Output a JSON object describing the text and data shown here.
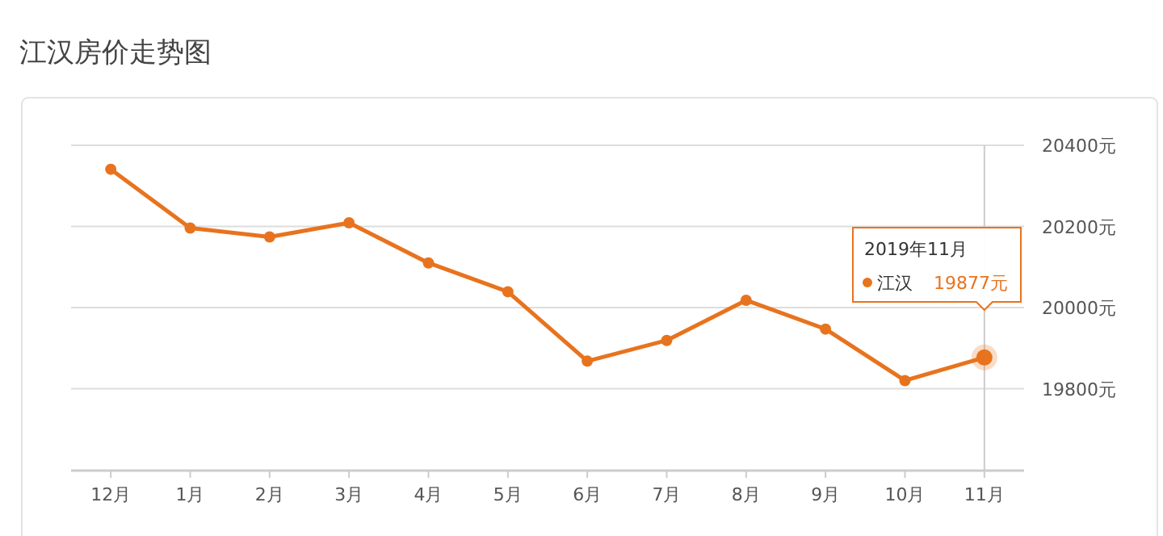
{
  "chart_data": {
    "type": "line",
    "title": "江汉房价走势图",
    "categories": [
      "12月",
      "1月",
      "2月",
      "3月",
      "4月",
      "5月",
      "6月",
      "7月",
      "8月",
      "9月",
      "10月",
      "11月"
    ],
    "series": [
      {
        "name": "江汉",
        "color": "#e8731e",
        "values": [
          20341,
          20196,
          20174,
          20209,
          20110,
          20039,
          19868,
          19919,
          20018,
          19947,
          19820,
          19877
        ],
        "value_labels": [
          null,
          null,
          null,
          null,
          null,
          null,
          null,
          null,
          null,
          null,
          null,
          "19877元"
        ]
      }
    ],
    "ylim": [
      19600,
      20400
    ],
    "yticks": [
      {
        "value": 19800,
        "label": "19800元"
      },
      {
        "value": 20000,
        "label": "20000元"
      },
      {
        "value": 20200,
        "label": "20200元"
      },
      {
        "value": 20400,
        "label": "20400元"
      }
    ],
    "ref_lines": [
      {
        "axis": "x",
        "value": "11月",
        "color": "#cccccc"
      }
    ],
    "annotations": [
      "2019年11月"
    ],
    "grid": "y",
    "marker": "circle",
    "line_style": "solid"
  }
}
